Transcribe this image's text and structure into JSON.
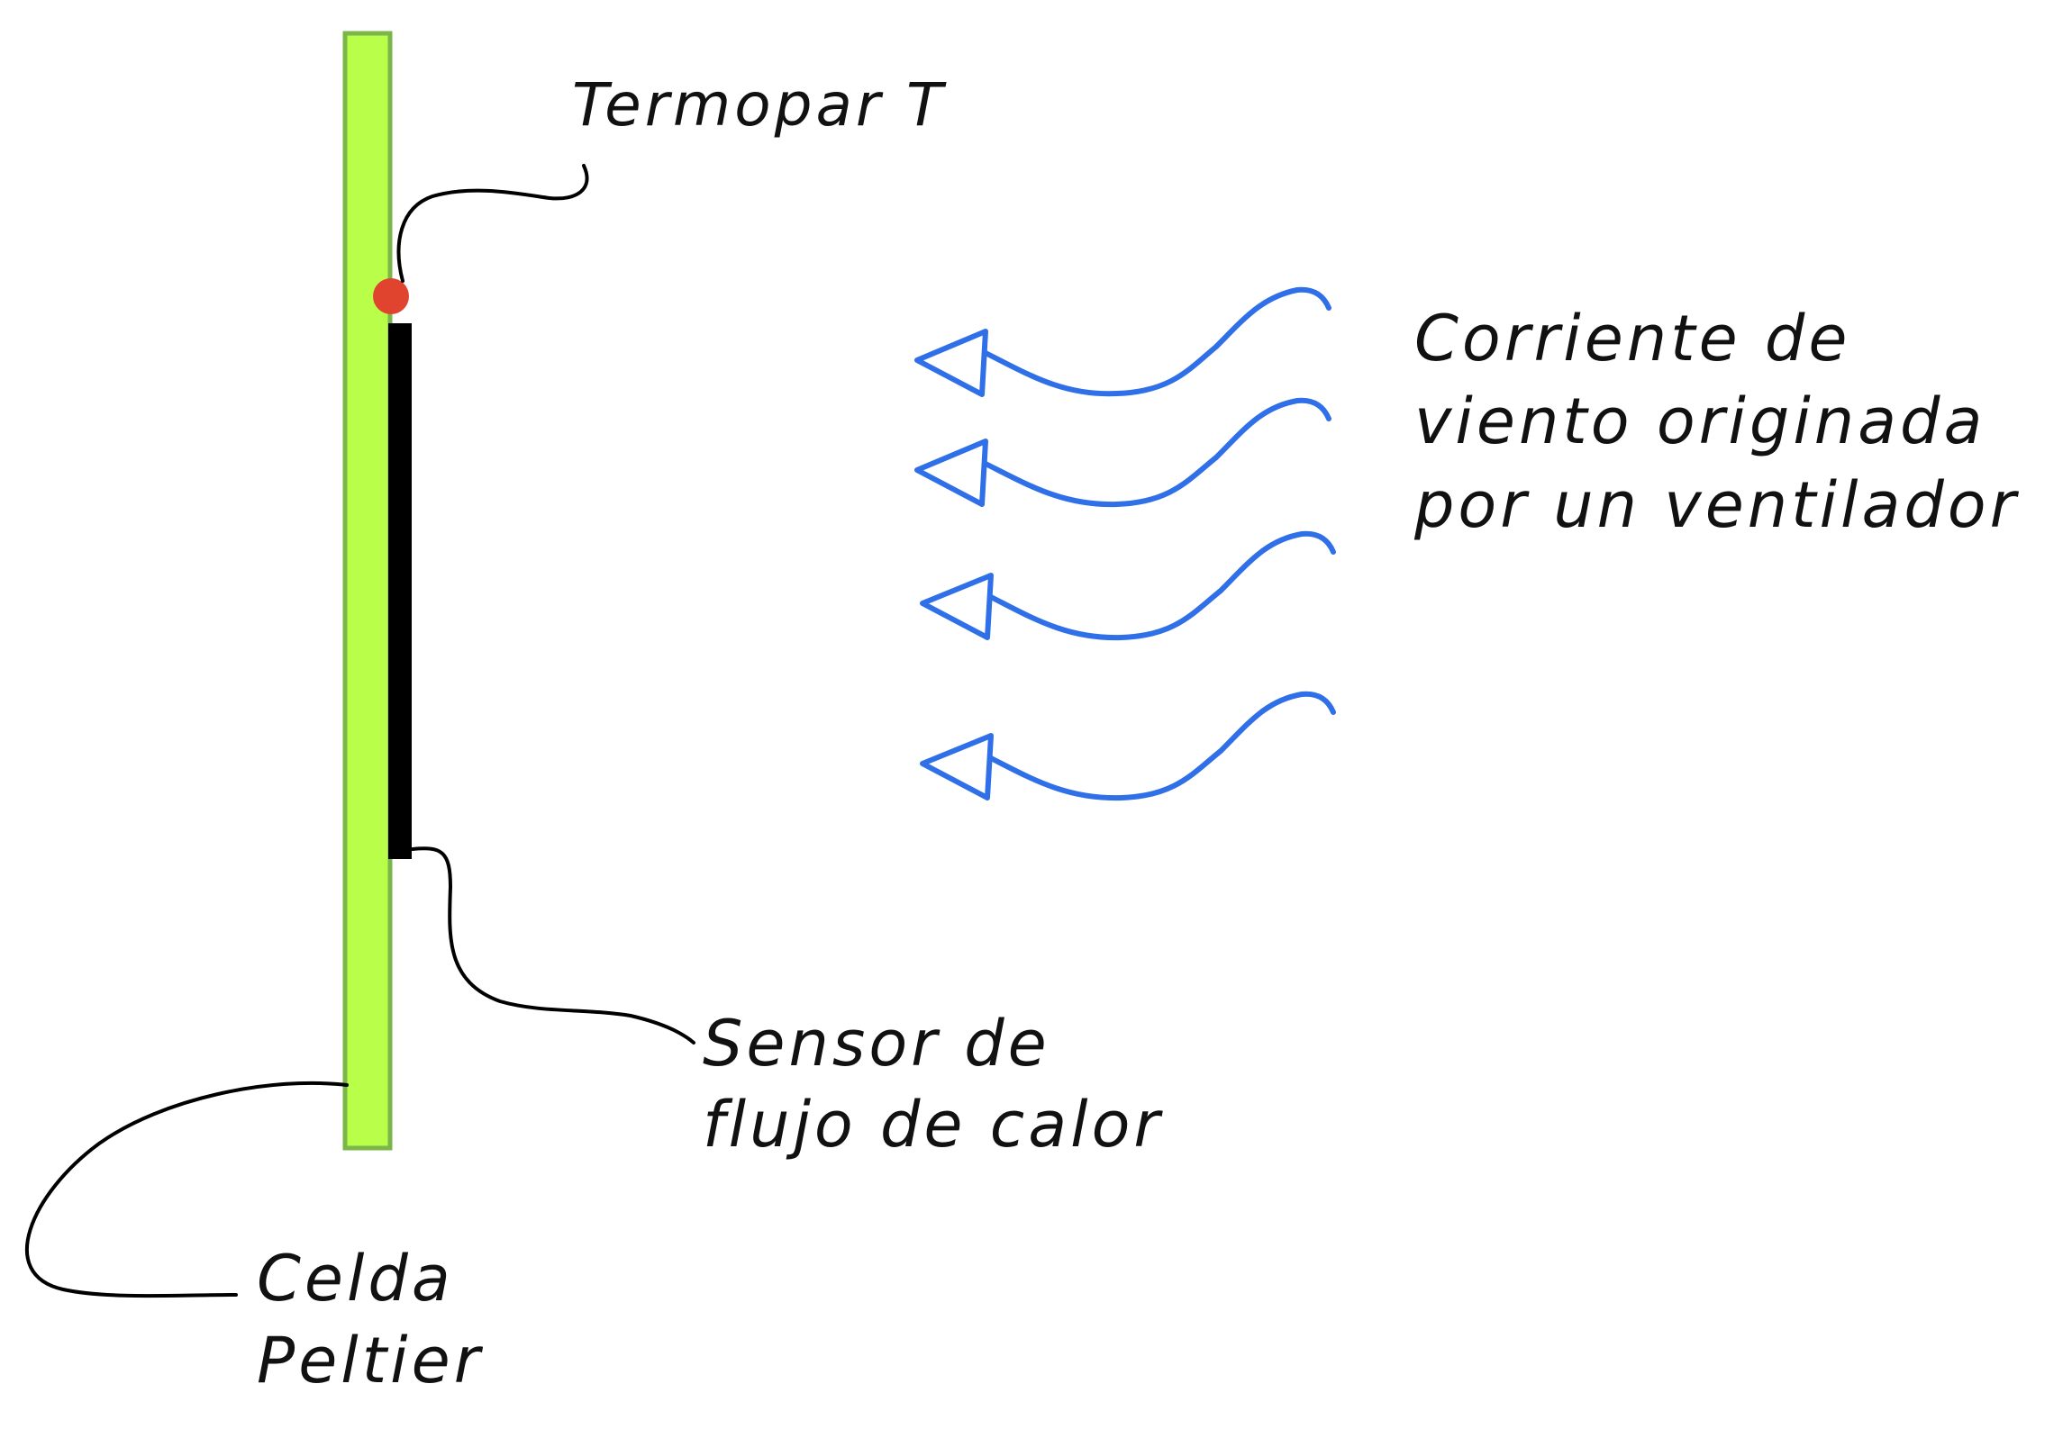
{
  "labels": {
    "thermocouple": "Termopar T",
    "wind": [
      "Corriente de",
      "viento originada",
      "por un ventilador"
    ],
    "heat_flux_sensor": [
      "Sensor de",
      "flujo de calor"
    ],
    "peltier_cell": [
      "Celda",
      "Peltier"
    ]
  },
  "colors": {
    "peltier_fill": "#B9FF4A",
    "peltier_border": "#7AB648",
    "sensor": "#000000",
    "thermocouple_dot": "#E0432E",
    "arrows": "#2F6FE8",
    "leader_lines": "#000000"
  },
  "icons": {
    "thermocouple": "red-dot",
    "wind_arrows": "left-pointing-arrow"
  }
}
